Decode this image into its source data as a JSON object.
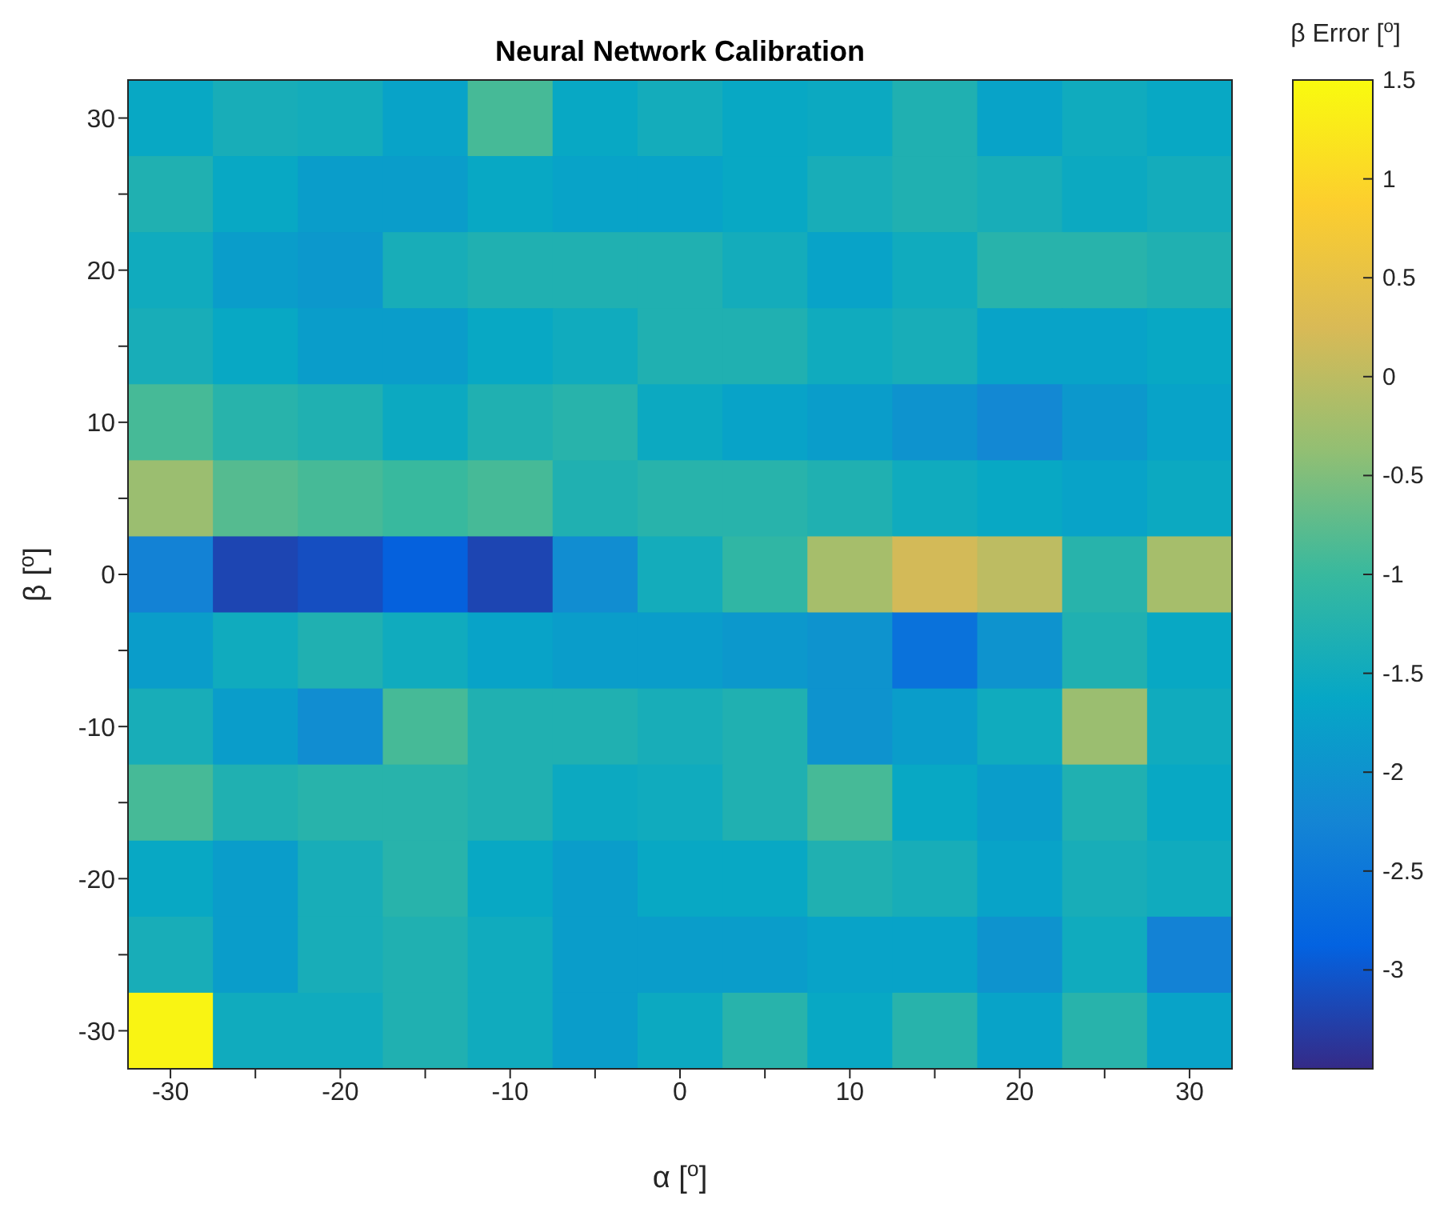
{
  "chart_data": {
    "type": "heatmap",
    "title": "Neural Network Calibration",
    "xlabel": "α [$^{o}$]",
    "ylabel": "β [$^{o}$]",
    "clabel": "β Error [$^{o}$]",
    "categories": [
      "-30",
      null,
      "-20",
      null,
      "-10",
      null,
      "0",
      null,
      "10",
      null,
      "20",
      null,
      "30"
    ],
    "y_categories": [
      "30",
      null,
      "20",
      null,
      "10",
      null,
      "0",
      null,
      "-10",
      null,
      "-20",
      null,
      "-30"
    ],
    "cells": [
      [
        -1.6,
        -1.4,
        -1.45,
        -1.7,
        -0.9,
        -1.6,
        -1.45,
        -1.6,
        -1.55,
        -1.3,
        -1.7,
        -1.5,
        -1.6
      ],
      [
        -1.3,
        -1.6,
        -1.8,
        -1.8,
        -1.6,
        -1.7,
        -1.7,
        -1.6,
        -1.4,
        -1.3,
        -1.4,
        -1.55,
        -1.45
      ],
      [
        -1.5,
        -1.8,
        -1.9,
        -1.4,
        -1.3,
        -1.3,
        -1.3,
        -1.45,
        -1.7,
        -1.5,
        -1.2,
        -1.2,
        -1.3
      ],
      [
        -1.4,
        -1.6,
        -1.8,
        -1.8,
        -1.6,
        -1.5,
        -1.3,
        -1.3,
        -1.5,
        -1.4,
        -1.7,
        -1.7,
        -1.6
      ],
      [
        -0.9,
        -1.2,
        -1.3,
        -1.55,
        -1.3,
        -1.2,
        -1.55,
        -1.7,
        -1.8,
        -2.0,
        -2.2,
        -1.9,
        -1.7
      ],
      [
        -0.3,
        -0.8,
        -0.9,
        -1.0,
        -0.9,
        -1.3,
        -1.2,
        -1.2,
        -1.3,
        -1.5,
        -1.6,
        -1.7,
        -1.55
      ],
      [
        -2.3,
        -3.2,
        -3.1,
        -2.9,
        -3.2,
        -2.1,
        -1.45,
        -1.1,
        -0.2,
        0.2,
        0.0,
        -1.2,
        -0.2
      ],
      [
        -1.8,
        -1.5,
        -1.3,
        -1.5,
        -1.7,
        -1.8,
        -1.8,
        -1.9,
        -2.0,
        -2.6,
        -2.0,
        -1.3,
        -1.6
      ],
      [
        -1.4,
        -1.8,
        -2.1,
        -0.9,
        -1.3,
        -1.3,
        -1.4,
        -1.3,
        -2.0,
        -1.8,
        -1.5,
        -0.3,
        -1.5
      ],
      [
        -0.9,
        -1.3,
        -1.2,
        -1.2,
        -1.3,
        -1.55,
        -1.5,
        -1.3,
        -0.9,
        -1.6,
        -1.8,
        -1.3,
        -1.6
      ],
      [
        -1.6,
        -1.8,
        -1.4,
        -1.2,
        -1.6,
        -1.8,
        -1.6,
        -1.6,
        -1.3,
        -1.4,
        -1.7,
        -1.4,
        -1.5
      ],
      [
        -1.4,
        -1.8,
        -1.4,
        -1.3,
        -1.5,
        -1.8,
        -1.8,
        -1.8,
        -1.7,
        -1.7,
        -2.0,
        -1.5,
        -2.3
      ],
      [
        1.4,
        -1.5,
        -1.5,
        -1.3,
        -1.5,
        -1.8,
        -1.55,
        -1.2,
        -1.6,
        -1.2,
        -1.7,
        -1.2,
        -1.7
      ]
    ],
    "clim": [
      -3.5,
      1.5
    ],
    "cticks": [
      1.5,
      1,
      0.5,
      0,
      -0.5,
      -1,
      -1.5,
      -2,
      -2.5,
      -3
    ]
  }
}
